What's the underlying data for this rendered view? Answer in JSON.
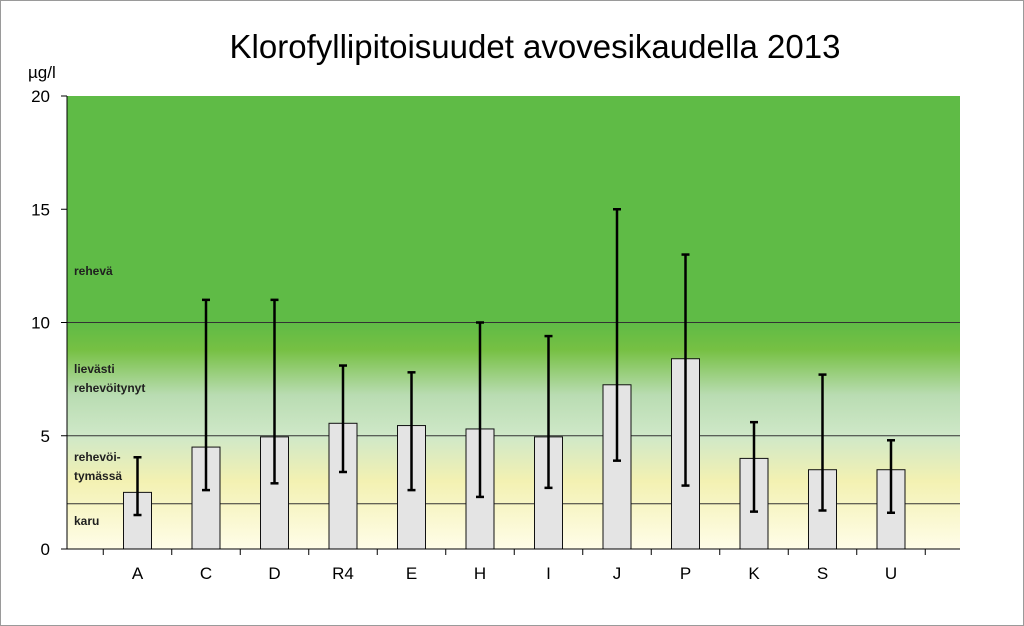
{
  "chart_data": {
    "type": "bar",
    "title": "Klorofyllipitoisuudet avovesikaudella  2013",
    "ylabel": "µg/l",
    "ylim": [
      0,
      20
    ],
    "yticks": [
      0,
      5,
      10,
      15,
      20
    ],
    "grid": false,
    "categories": [
      "A",
      "C",
      "D",
      "R4",
      "E",
      "H",
      "I",
      "J",
      "P",
      "K",
      "S",
      "U"
    ],
    "values": [
      2.5,
      4.5,
      4.95,
      5.55,
      5.45,
      5.3,
      4.95,
      7.25,
      8.4,
      4.0,
      3.5,
      3.5
    ],
    "error_min": [
      1.5,
      2.6,
      2.9,
      3.4,
      2.6,
      2.3,
      2.7,
      3.9,
      2.8,
      1.65,
      1.7,
      1.6
    ],
    "error_max": [
      4.05,
      11.0,
      11.0,
      8.1,
      7.8,
      10.0,
      9.4,
      15.0,
      13.0,
      5.6,
      7.7,
      4.8
    ],
    "bar_color": "#e4e4e4",
    "zones": [
      {
        "label_lines": [
          "karu"
        ],
        "from": 0,
        "to": 2,
        "color": "#fdfde4"
      },
      {
        "label_lines": [
          "rehevöi-",
          "tymässä"
        ],
        "from": 2,
        "to": 5,
        "color": "#f6f3b0"
      },
      {
        "label_lines": [
          "lievästi",
          "rehevöitynyt"
        ],
        "from": 5,
        "to": 10,
        "color": "#b7dca8"
      },
      {
        "label_lines": [
          "rehevä"
        ],
        "from": 10,
        "to": 20,
        "color": "#63b946"
      }
    ],
    "thresholds": [
      2,
      5,
      10
    ]
  }
}
